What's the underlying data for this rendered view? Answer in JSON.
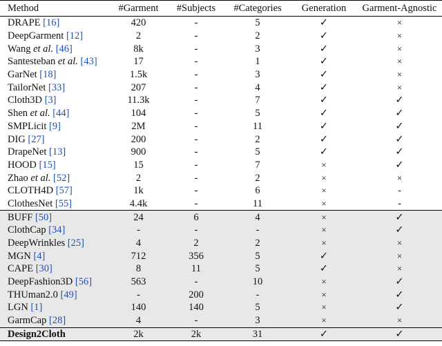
{
  "columns": [
    "Method",
    "#Garment",
    "#Subjects",
    "#Categories",
    "Generation",
    "Garment-Agnostic"
  ],
  "rows": [
    {
      "name": "DRAPE",
      "etal": "",
      "ref": "[16]",
      "garment": "420",
      "subjects": "-",
      "categories": "5",
      "generation": "✓",
      "agnostic": "×"
    },
    {
      "name": "DeepGarment",
      "etal": "",
      "ref": "[12]",
      "garment": "2",
      "subjects": "-",
      "categories": "2",
      "generation": "✓",
      "agnostic": "×"
    },
    {
      "name": "Wang",
      "etal": "et al.",
      "ref": "[46]",
      "garment": "8k",
      "subjects": "-",
      "categories": "3",
      "generation": "✓",
      "agnostic": "×"
    },
    {
      "name": "Santesteban",
      "etal": "et al.",
      "ref": "[43]",
      "garment": "17",
      "subjects": "-",
      "categories": "1",
      "generation": "✓",
      "agnostic": "×"
    },
    {
      "name": "GarNet",
      "etal": "",
      "ref": "[18]",
      "garment": "1.5k",
      "subjects": "-",
      "categories": "3",
      "generation": "✓",
      "agnostic": "×"
    },
    {
      "name": "TailorNet",
      "etal": "",
      "ref": "[33]",
      "garment": "207",
      "subjects": "-",
      "categories": "4",
      "generation": "✓",
      "agnostic": "×"
    },
    {
      "name": "Cloth3D",
      "etal": "",
      "ref": "[3]",
      "garment": "11.3k",
      "subjects": "-",
      "categories": "7",
      "generation": "✓",
      "agnostic": "✓"
    },
    {
      "name": "Shen",
      "etal": "et al.",
      "ref": "[44]",
      "garment": "104",
      "subjects": "-",
      "categories": "5",
      "generation": "✓",
      "agnostic": "✓"
    },
    {
      "name": "SMPLicit",
      "etal": "",
      "ref": "[9]",
      "garment": "2M",
      "subjects": "-",
      "categories": "11",
      "generation": "✓",
      "agnostic": "✓"
    },
    {
      "name": "DIG",
      "etal": "",
      "ref": "[27]",
      "garment": "200",
      "subjects": "-",
      "categories": "2",
      "generation": "✓",
      "agnostic": "✓"
    },
    {
      "name": "DrapeNet",
      "etal": "",
      "ref": "[13]",
      "garment": "900",
      "subjects": "-",
      "categories": "5",
      "generation": "✓",
      "agnostic": "✓"
    },
    {
      "name": "HOOD",
      "etal": "",
      "ref": "[15]",
      "garment": "15",
      "subjects": "-",
      "categories": "7",
      "generation": "×",
      "agnostic": "✓"
    },
    {
      "name": "Zhao",
      "etal": "et al.",
      "ref": "[52]",
      "garment": "2",
      "subjects": "-",
      "categories": "2",
      "generation": "×",
      "agnostic": "×"
    },
    {
      "name": "CLOTH4D",
      "etal": "",
      "ref": "[57]",
      "garment": "1k",
      "subjects": "-",
      "categories": "6",
      "generation": "×",
      "agnostic": "-"
    },
    {
      "name": "ClothesNet",
      "etal": "",
      "ref": "[55]",
      "garment": "4.4k",
      "subjects": "-",
      "categories": "11",
      "generation": "×",
      "agnostic": "-"
    },
    {
      "name": "BUFF",
      "etal": "",
      "ref": "[50]",
      "garment": "24",
      "subjects": "6",
      "categories": "4",
      "generation": "×",
      "agnostic": "✓"
    },
    {
      "name": "ClothCap",
      "etal": "",
      "ref": "[34]",
      "garment": "-",
      "subjects": "-",
      "categories": "-",
      "generation": "×",
      "agnostic": "✓"
    },
    {
      "name": "DeepWrinkles",
      "etal": "",
      "ref": "[25]",
      "garment": "4",
      "subjects": "2",
      "categories": "2",
      "generation": "×",
      "agnostic": "×"
    },
    {
      "name": "MGN",
      "etal": "",
      "ref": "[4]",
      "garment": "712",
      "subjects": "356",
      "categories": "5",
      "generation": "✓",
      "agnostic": "×"
    },
    {
      "name": "CAPE",
      "etal": "",
      "ref": "[30]",
      "garment": "8",
      "subjects": "11",
      "categories": "5",
      "generation": "✓",
      "agnostic": "×"
    },
    {
      "name": "DeepFashion3D",
      "etal": "",
      "ref": "[56]",
      "garment": "563",
      "subjects": "-",
      "categories": "10",
      "generation": "×",
      "agnostic": "✓"
    },
    {
      "name": "THUman2.0",
      "etal": "",
      "ref": "[49]",
      "garment": "-",
      "subjects": "200",
      "categories": "-",
      "generation": "×",
      "agnostic": "✓"
    },
    {
      "name": "LGN",
      "etal": "",
      "ref": "[1]",
      "garment": "140",
      "subjects": "140",
      "categories": "5",
      "generation": "×",
      "agnostic": "✓"
    },
    {
      "name": "GarmCap",
      "etal": "",
      "ref": "[28]",
      "garment": "4",
      "subjects": "-",
      "categories": "3",
      "generation": "×",
      "agnostic": "×"
    },
    {
      "name": "Design2Cloth",
      "etal": "",
      "ref": "",
      "garment": "2k",
      "subjects": "2k",
      "categories": "31",
      "generation": "✓",
      "agnostic": "✓"
    }
  ]
}
